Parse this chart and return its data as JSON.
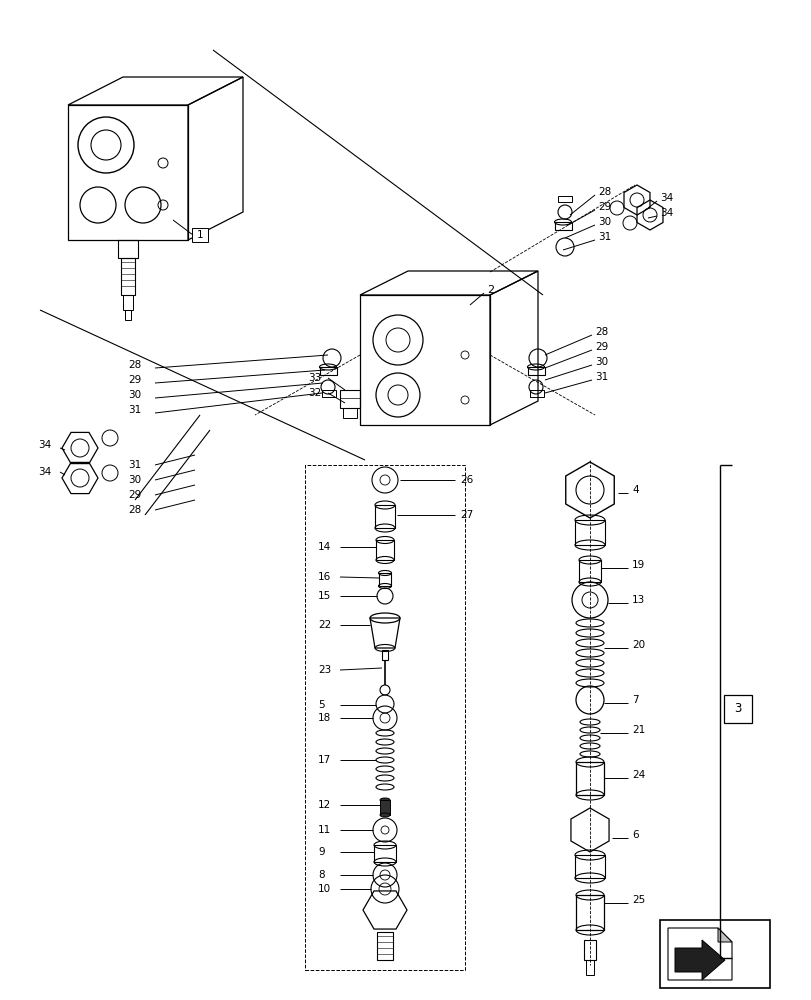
{
  "bg_color": "#ffffff",
  "lc": "#000000",
  "fig_w": 8.12,
  "fig_h": 10.0,
  "dpi": 100
}
